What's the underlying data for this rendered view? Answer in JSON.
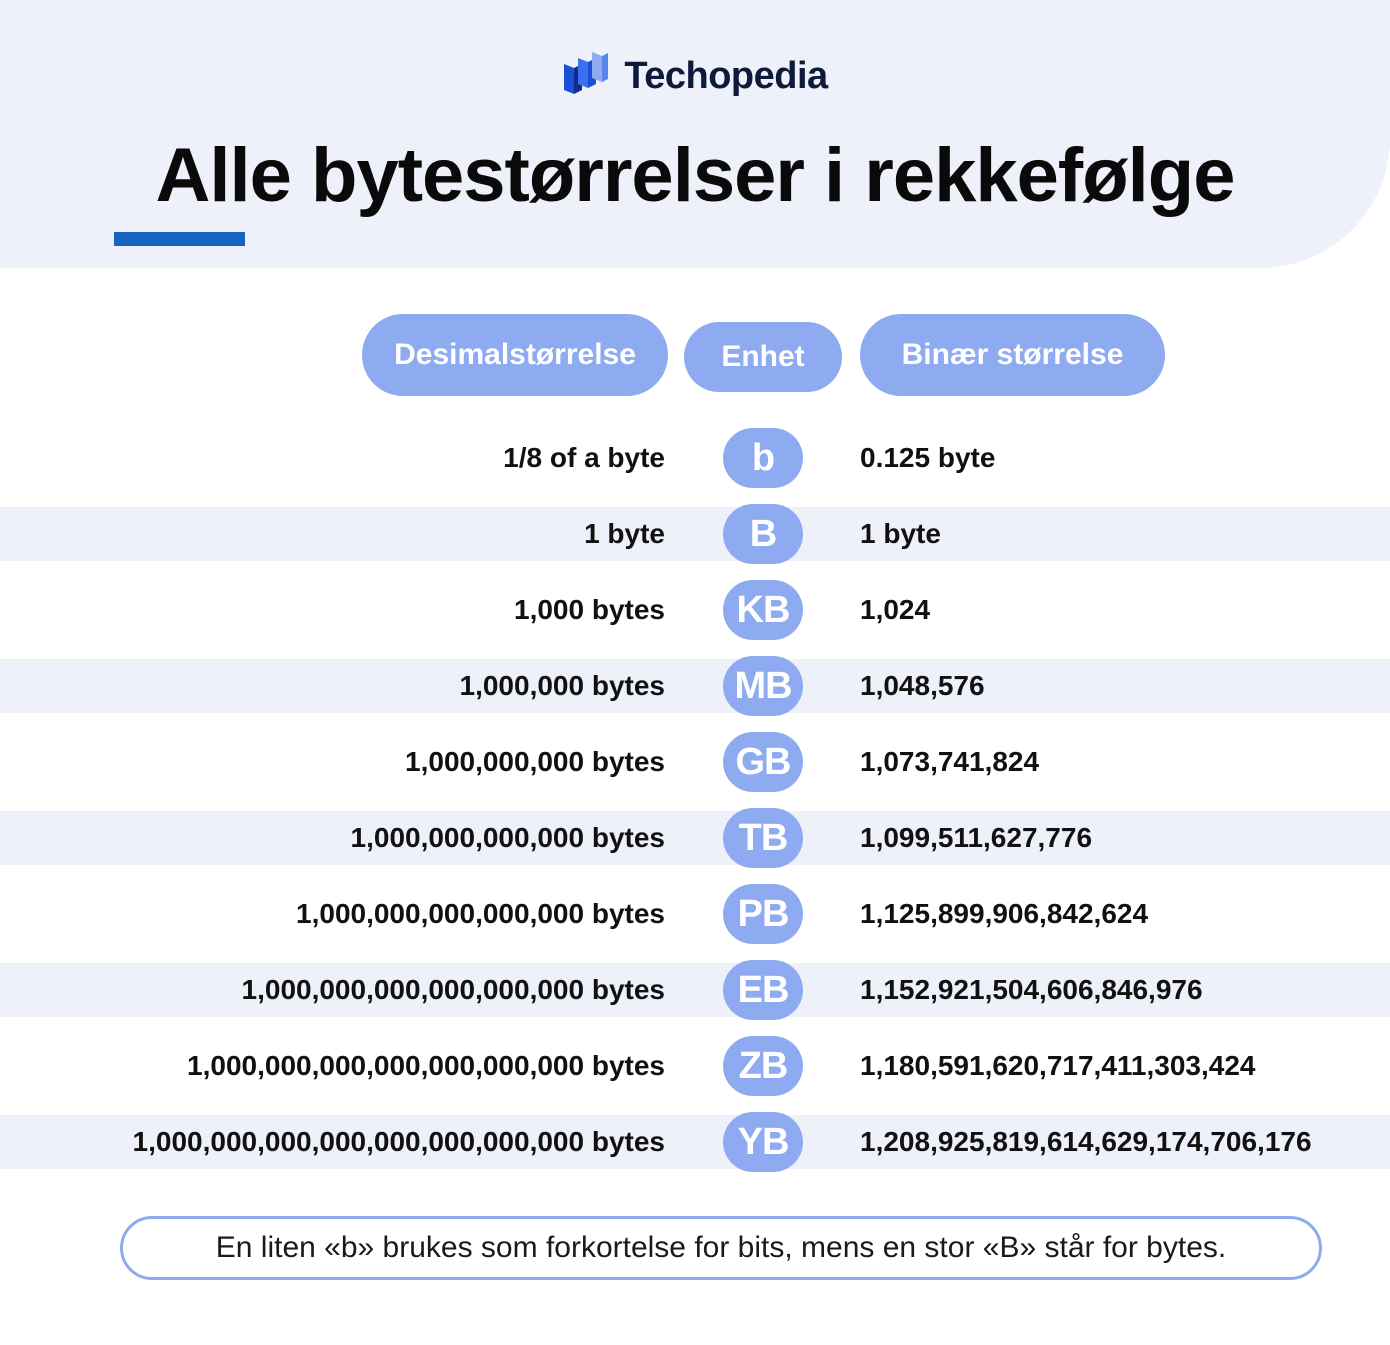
{
  "brand": {
    "name": "Techopedia",
    "logo_icon": "techopedia-logo-icon"
  },
  "title": "Alle bytestørrelser i rekkefølge",
  "headers": {
    "decimal": "Desimalstørrelse",
    "unit": "Enhet",
    "binary": "Binær størrelse"
  },
  "rows": [
    {
      "decimal": "1/8 of a byte",
      "unit": "b",
      "binary": "0.125 byte"
    },
    {
      "decimal": "1 byte",
      "unit": "B",
      "binary": "1 byte"
    },
    {
      "decimal": "1,000 bytes",
      "unit": "KB",
      "binary": "1,024"
    },
    {
      "decimal": "1,000,000 bytes",
      "unit": "MB",
      "binary": "1,048,576"
    },
    {
      "decimal": "1,000,000,000 bytes",
      "unit": "GB",
      "binary": "1,073,741,824"
    },
    {
      "decimal": "1,000,000,000,000 bytes",
      "unit": "TB",
      "binary": "1,099,511,627,776"
    },
    {
      "decimal": "1,000,000,000,000,000 bytes",
      "unit": "PB",
      "binary": "1,125,899,906,842,624"
    },
    {
      "decimal": "1,000,000,000,000,000,000 bytes",
      "unit": "EB",
      "binary": "1,152,921,504,606,846,976"
    },
    {
      "decimal": "1,000,000,000,000,000,000,000 bytes",
      "unit": "ZB",
      "binary": "1,180,591,620,717,411,303,424"
    },
    {
      "decimal": "1,000,000,000,000,000,000,000,000 bytes",
      "unit": "YB",
      "binary": "1,208,925,819,614,629,174,706,176"
    }
  ],
  "note": "En liten «b» brukes som forkortelse for bits, mens en stor «B» står for bytes.",
  "colors": {
    "accent_pill": "#8eaaf0",
    "header_bg": "#eef1f9",
    "underline": "#1565c0",
    "brand_text": "#0e1a3a"
  }
}
